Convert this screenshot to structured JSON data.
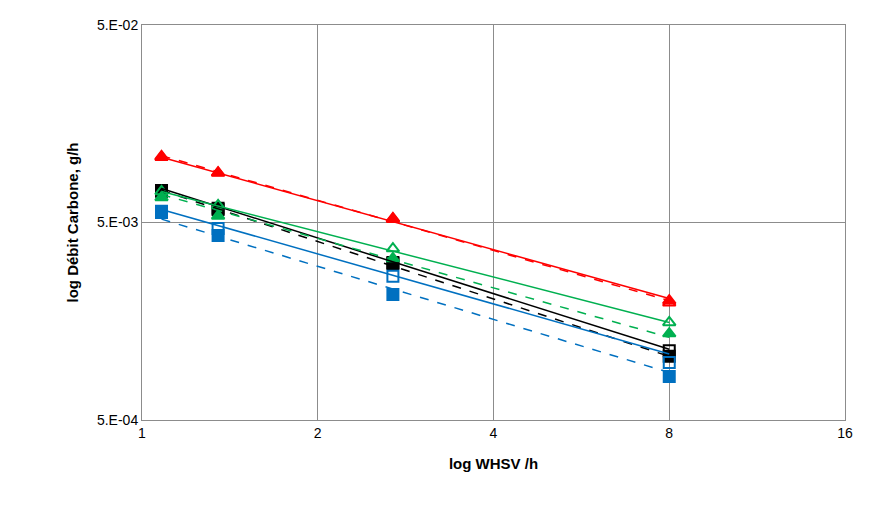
{
  "chart_data": {
    "type": "scatter",
    "x_label": "log WHSV /h",
    "y_label": "log Débit Carbone, g/h",
    "log": true,
    "grid": true,
    "xlim": [
      1,
      16
    ],
    "xticks": [
      1,
      2,
      4,
      8,
      16
    ],
    "ylim": [
      0.0005,
      0.05
    ],
    "yticks": [
      {
        "value": 0.0005,
        "label": "5.E-04"
      },
      {
        "value": 0.005,
        "label": "5.E-03"
      },
      {
        "value": 0.05,
        "label": "5.E-02"
      }
    ],
    "x": [
      1.08,
      1.35,
      2.69,
      8
    ],
    "series": [
      {
        "type": "scatter",
        "color": "#ff0000",
        "marker": "triangle-up",
        "values": [
          0.0108,
          0.00895,
          0.00524,
          0.00201
        ]
      },
      {
        "type": "scatter",
        "color": "#ff0000",
        "marker": "triangle-up-open",
        "values": [
          0.0107,
          0.0089,
          0.0052,
          0.00196
        ]
      },
      {
        "type": "scatter",
        "color": "#000000",
        "marker": "square",
        "values": [
          0.00726,
          0.00582,
          0.00314,
          0.00105
        ]
      },
      {
        "type": "scatter",
        "color": "#000000",
        "marker": "square-open",
        "values": [
          0.0072,
          0.0059,
          0.0031,
          0.00112
        ]
      },
      {
        "type": "scatter",
        "color": "#00b050",
        "marker": "triangle-up",
        "values": [
          0.0067,
          0.0054,
          0.00329,
          0.00137
        ]
      },
      {
        "type": "scatter",
        "color": "#00b050",
        "marker": "triangle-up-open",
        "values": [
          0.00718,
          0.0061,
          0.00369,
          0.00156
        ]
      },
      {
        "type": "scatter",
        "color": "#0070c0",
        "marker": "square",
        "values": [
          0.00562,
          0.0043,
          0.00216,
          0.00083
        ]
      },
      {
        "type": "scatter",
        "color": "#0070c0",
        "marker": "square-open",
        "values": [
          0.0057,
          0.00466,
          0.00267,
          0.000977
        ]
      },
      {
        "type": "line",
        "color": "#ff0000",
        "line_style": "solid",
        "x": [
          1.08,
          8
        ],
        "values": [
          0.0107,
          0.00206
        ]
      },
      {
        "type": "line",
        "color": "#ff0000",
        "line_style": "dash",
        "x": [
          1.08,
          8
        ],
        "values": [
          0.0109,
          0.00201
        ]
      },
      {
        "type": "line",
        "color": "#000000",
        "line_style": "solid",
        "x": [
          1.08,
          8
        ],
        "values": [
          0.00743,
          0.00114
        ]
      },
      {
        "type": "line",
        "color": "#000000",
        "line_style": "dash",
        "x": [
          1.08,
          8
        ],
        "values": [
          0.00726,
          0.00105
        ]
      },
      {
        "type": "line",
        "color": "#00b050",
        "line_style": "solid",
        "x": [
          1.08,
          8
        ],
        "values": [
          0.00718,
          0.00156
        ]
      },
      {
        "type": "line",
        "color": "#00b050",
        "line_style": "dash",
        "x": [
          1.08,
          8
        ],
        "values": [
          0.00693,
          0.00131
        ]
      },
      {
        "type": "line",
        "color": "#0070c0",
        "line_style": "solid",
        "x": [
          1.08,
          8
        ],
        "values": [
          0.00582,
          0.00108
        ]
      },
      {
        "type": "line",
        "color": "#0070c0",
        "line_style": "dash",
        "x": [
          1.08,
          8
        ],
        "values": [
          0.0052,
          0.00087
        ]
      }
    ]
  }
}
